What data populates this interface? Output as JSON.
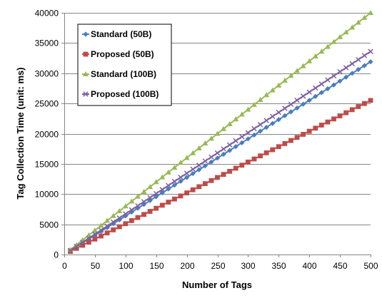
{
  "chart_data": {
    "type": "line",
    "title": "",
    "xlabel": "Number of Tags",
    "ylabel": "Tag Collection Time (unit: ms)",
    "xlim": [
      0,
      500
    ],
    "ylim": [
      0,
      40000
    ],
    "xticks": [
      0,
      50,
      100,
      150,
      200,
      250,
      300,
      350,
      400,
      450,
      500
    ],
    "yticks": [
      0,
      5000,
      10000,
      15000,
      20000,
      25000,
      30000,
      35000,
      40000
    ],
    "grid": "horizontal",
    "legend_position": "top-left",
    "x": [
      10,
      20,
      30,
      40,
      50,
      60,
      70,
      80,
      90,
      100,
      110,
      120,
      130,
      140,
      150,
      160,
      170,
      180,
      190,
      200,
      210,
      220,
      230,
      240,
      250,
      260,
      270,
      280,
      290,
      300,
      310,
      320,
      330,
      340,
      350,
      360,
      370,
      380,
      390,
      400,
      410,
      420,
      430,
      440,
      450,
      460,
      470,
      480,
      490,
      500
    ],
    "series": [
      {
        "name": "Standard (50B)",
        "color": "#4a7ebb",
        "marker": "diamond",
        "values": [
          640,
          1280,
          1910,
          2550,
          3190,
          3830,
          4470,
          5100,
          5740,
          6380,
          7020,
          7660,
          8290,
          8930,
          9570,
          10210,
          10850,
          11480,
          12120,
          12760,
          13400,
          14040,
          14670,
          15310,
          15950,
          16590,
          17230,
          17860,
          18500,
          19140,
          19780,
          20420,
          21050,
          21690,
          22330,
          22970,
          23610,
          24240,
          24880,
          25520,
          26160,
          26800,
          27430,
          28070,
          28710,
          29350,
          29990,
          30620,
          31260,
          31900
        ]
      },
      {
        "name": "Proposed (50B)",
        "color": "#be4b48",
        "marker": "square",
        "values": [
          510,
          1020,
          1530,
          2040,
          2550,
          3060,
          3570,
          4080,
          4590,
          5100,
          5610,
          6120,
          6630,
          7140,
          7650,
          8160,
          8670,
          9180,
          9690,
          10200,
          10710,
          11220,
          11730,
          12240,
          12750,
          13260,
          13770,
          14280,
          14790,
          15300,
          15810,
          16320,
          16830,
          17340,
          17850,
          18360,
          18870,
          19380,
          19890,
          20400,
          20910,
          21420,
          21930,
          22440,
          22950,
          23460,
          23970,
          24480,
          24990,
          25500
        ]
      },
      {
        "name": "Standard (100B)",
        "color": "#98b954",
        "marker": "triangle",
        "values": [
          800,
          1600,
          2400,
          3200,
          4000,
          4800,
          5600,
          6400,
          7200,
          8000,
          8800,
          9600,
          10400,
          11200,
          12000,
          12800,
          13600,
          14400,
          15200,
          16000,
          16800,
          17600,
          18400,
          19200,
          20000,
          20800,
          21600,
          22400,
          23200,
          24000,
          24800,
          25600,
          26400,
          27200,
          28000,
          28800,
          29600,
          30400,
          31200,
          32000,
          32800,
          33600,
          34400,
          35200,
          36000,
          36800,
          37600,
          38400,
          39200,
          40000
        ]
      },
      {
        "name": "Proposed (100B)",
        "color": "#7d5fa0",
        "marker": "x",
        "values": [
          670,
          1340,
          2020,
          2690,
          3360,
          4030,
          4700,
          5380,
          6050,
          6720,
          7390,
          8060,
          8740,
          9410,
          10080,
          10750,
          11420,
          12100,
          12770,
          13440,
          14110,
          14780,
          15460,
          16130,
          16800,
          17470,
          18140,
          18820,
          19490,
          20160,
          20830,
          21500,
          22180,
          22850,
          23520,
          24190,
          24860,
          25540,
          26210,
          26880,
          27550,
          28220,
          28900,
          29570,
          30240,
          30910,
          31580,
          32260,
          32930,
          33600
        ]
      }
    ]
  }
}
